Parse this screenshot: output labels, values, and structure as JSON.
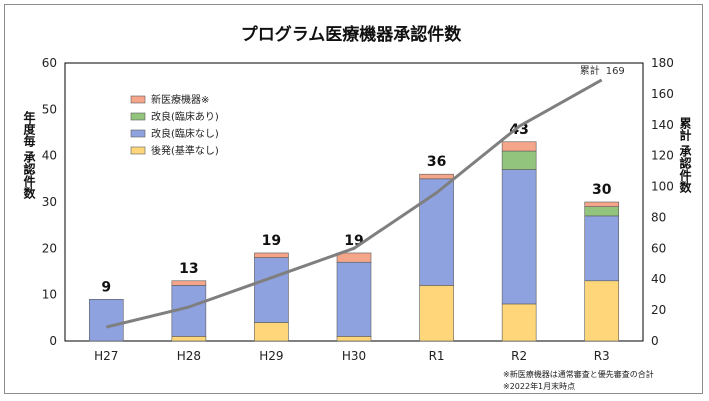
{
  "chart_data": {
    "type": "bar",
    "title": "プログラム医療機器承認件数",
    "categories": [
      "H27",
      "H28",
      "H29",
      "H30",
      "R1",
      "R2",
      "R3"
    ],
    "series": [
      {
        "name": "後発(基準なし)",
        "color": "#ffd77a",
        "values": [
          0,
          1,
          4,
          1,
          12,
          8,
          13
        ]
      },
      {
        "name": "改良(臨床なし)",
        "color": "#8ea2e0",
        "values": [
          9,
          11,
          14,
          16,
          23,
          29,
          14
        ]
      },
      {
        "name": "改良(臨床あり)",
        "color": "#93c47d",
        "values": [
          0,
          0,
          0,
          0,
          0,
          4,
          2
        ]
      },
      {
        "name": "新医療機器※",
        "color": "#f4a58a",
        "values": [
          0,
          1,
          1,
          2,
          1,
          2,
          1
        ]
      }
    ],
    "totals": [
      9,
      13,
      19,
      19,
      36,
      43,
      30
    ],
    "cumulative": {
      "name": "累計",
      "values": [
        9,
        22,
        41,
        60,
        96,
        139,
        169
      ],
      "end_label": "169",
      "color": "#7f7f7f"
    },
    "ylabel_left": "年度毎 承認件数",
    "ylabel_right": "累計 承認件数",
    "ylim_left": [
      0,
      60
    ],
    "ylim_right": [
      0,
      180
    ],
    "yticks_left": [
      "0",
      "10",
      "20",
      "30",
      "40",
      "50",
      "60"
    ],
    "yticks_right": [
      "0",
      "20",
      "40",
      "60",
      "80",
      "100",
      "120",
      "140",
      "160",
      "180"
    ],
    "legend_position": "upper-left",
    "notes": [
      "※新医療機器は通常審査と優先審査の合計",
      "※2022年1月末時点"
    ]
  }
}
